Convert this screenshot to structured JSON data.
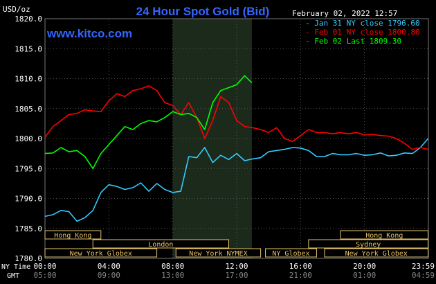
{
  "chart_data": {
    "type": "line",
    "title": "24 Hour Spot Gold (Bid)",
    "site": "www.kitco.com",
    "unit_label": "USD/oz",
    "date_label": "February 02, 2022 12:57",
    "ylim": [
      1780,
      1820
    ],
    "y_ticks": [
      "1820.0",
      "1815.0",
      "1810.0",
      "1805.0",
      "1800.0",
      "1795.0",
      "1790.0",
      "1785.0",
      "1780.0"
    ],
    "x_ticks_ny": [
      "00:00",
      "04:00",
      "08:00",
      "12:00",
      "16:00",
      "20:00",
      "23:59"
    ],
    "x_ticks_gmt": [
      "05:00",
      "09:00",
      "13:00",
      "17:00",
      "21:00",
      "01:00",
      "04:59"
    ],
    "x_axis_row1_label": "NY Time",
    "x_axis_row2_label": "GMT",
    "series": [
      {
        "name": "Jan 31 NY close 1796.60",
        "color": "#33ccff",
        "x": [
          0,
          0.5,
          1,
          1.5,
          2,
          2.5,
          3,
          3.5,
          4,
          4.5,
          5,
          5.5,
          6,
          6.5,
          7,
          7.5,
          8,
          8.5,
          9,
          9.5,
          10,
          10.5,
          11,
          11.5,
          12,
          12.5,
          13,
          13.5,
          14,
          14.5,
          15,
          15.5,
          16,
          16.5,
          17,
          17.5,
          18,
          18.5,
          19,
          19.5,
          20,
          20.5,
          21,
          21.5,
          22,
          22.5,
          23,
          23.5,
          23.98
        ],
        "values": [
          1787.0,
          1787.3,
          1788.0,
          1787.8,
          1786.2,
          1786.8,
          1788.0,
          1791.0,
          1792.3,
          1792.0,
          1791.5,
          1791.8,
          1792.6,
          1791.2,
          1792.5,
          1791.5,
          1791.0,
          1791.2,
          1797.0,
          1796.8,
          1798.5,
          1796.0,
          1797.2,
          1796.5,
          1797.5,
          1796.3,
          1796.6,
          1796.8,
          1797.8,
          1798.0,
          1798.2,
          1798.5,
          1798.4,
          1798.0,
          1797.0,
          1797.0,
          1797.5,
          1797.3,
          1797.3,
          1797.5,
          1797.2,
          1797.3,
          1797.6,
          1797.1,
          1797.2,
          1797.6,
          1797.5,
          1798.5,
          1800.0
        ]
      },
      {
        "name": "Feb 01 NY close 1800.80",
        "color": "#ff0000",
        "x": [
          0,
          0.5,
          1,
          1.5,
          2,
          2.5,
          3,
          3.5,
          4,
          4.5,
          5,
          5.5,
          6,
          6.5,
          7,
          7.5,
          8,
          8.5,
          9,
          9.5,
          10,
          10.5,
          11,
          11.5,
          12,
          12.5,
          13,
          13.5,
          14,
          14.5,
          15,
          15.5,
          16,
          16.5,
          17,
          17.5,
          18,
          18.5,
          19,
          19.5,
          20,
          20.5,
          21,
          21.5,
          22,
          22.5,
          23,
          23.5,
          23.98
        ],
        "values": [
          1800.2,
          1802.0,
          1803.0,
          1804.0,
          1804.2,
          1804.8,
          1804.6,
          1804.5,
          1806.3,
          1807.5,
          1807.0,
          1808.0,
          1808.3,
          1808.8,
          1808.0,
          1806.0,
          1805.5,
          1804.0,
          1806.0,
          1803.5,
          1800.0,
          1803.0,
          1807.0,
          1806.0,
          1803.0,
          1802.0,
          1801.8,
          1801.5,
          1801.0,
          1801.8,
          1800.0,
          1799.5,
          1800.5,
          1801.5,
          1801.0,
          1801.0,
          1800.8,
          1801.0,
          1800.8,
          1801.0,
          1800.6,
          1800.7,
          1800.5,
          1800.4,
          1800.0,
          1799.2,
          1798.2,
          1798.5,
          1798.2
        ]
      },
      {
        "name": "Feb 02 Last 1809.30",
        "color": "#00ff00",
        "x": [
          0,
          0.5,
          1,
          1.5,
          2,
          2.5,
          3,
          3.5,
          4,
          4.5,
          5,
          5.5,
          6,
          6.5,
          7,
          7.5,
          8,
          8.5,
          9,
          9.5,
          10,
          10.5,
          11,
          11.5,
          12,
          12.5,
          12.95
        ],
        "values": [
          1797.5,
          1797.6,
          1798.5,
          1797.8,
          1798.0,
          1797.0,
          1795.0,
          1797.5,
          1799.0,
          1800.5,
          1802.0,
          1801.5,
          1802.5,
          1803.0,
          1802.8,
          1803.5,
          1804.5,
          1804.0,
          1804.2,
          1803.5,
          1801.5,
          1806.0,
          1808.0,
          1808.5,
          1809.0,
          1810.5,
          1809.3
        ]
      }
    ],
    "highlight_window": [
      8,
      12.95
    ],
    "sessions": [
      {
        "name": "Hong Kong",
        "row": 1,
        "start": 0,
        "end": 3.5
      },
      {
        "name": "Hong Kong",
        "row": 1,
        "start": 18.5,
        "end": 23.98
      },
      {
        "name": "London",
        "row": 2,
        "start": 3,
        "end": 11.5
      },
      {
        "name": "Sydney",
        "row": 2,
        "start": 16.5,
        "end": 23.98
      },
      {
        "name": "New York Globex",
        "row": 3,
        "start": 0,
        "end": 7
      },
      {
        "name": "New York NYMEX",
        "row": 3,
        "start": 8.2,
        "end": 13.5
      },
      {
        "name": "NY Globex",
        "row": 3,
        "start": 13.8,
        "end": 17
      },
      {
        "name": "New York Globex",
        "row": 3,
        "start": 17.5,
        "end": 23.98
      }
    ]
  }
}
